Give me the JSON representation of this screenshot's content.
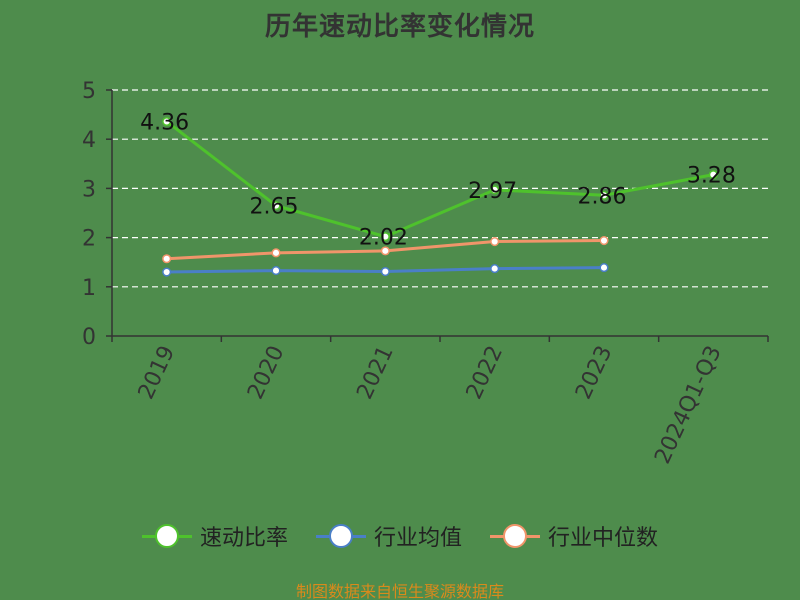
{
  "chart_data": {
    "type": "line",
    "title": "历年速动比率变化情况",
    "categories": [
      "2019",
      "2020",
      "2021",
      "2022",
      "2023",
      "2024Q1-Q3"
    ],
    "ylim": [
      0,
      5
    ],
    "yticks": [
      0,
      1,
      2,
      3,
      4,
      5
    ],
    "grid": true,
    "legend_position": "bottom",
    "series": [
      {
        "name": "速动比率",
        "color": "#4ec22c",
        "values": [
          4.36,
          2.65,
          2.02,
          2.97,
          2.86,
          3.28
        ],
        "labels": [
          "4.36",
          "2.65",
          "2.02",
          "2.97",
          "2.86",
          "3.28"
        ]
      },
      {
        "name": "行业均值",
        "color": "#4a7fc7",
        "values": [
          1.3,
          1.33,
          1.31,
          1.37,
          1.39,
          null
        ]
      },
      {
        "name": "行业中位数",
        "color": "#f0956a",
        "values": [
          1.57,
          1.69,
          1.73,
          1.92,
          1.94,
          null
        ]
      }
    ]
  },
  "source": "制图数据来自恒生聚源数据库"
}
